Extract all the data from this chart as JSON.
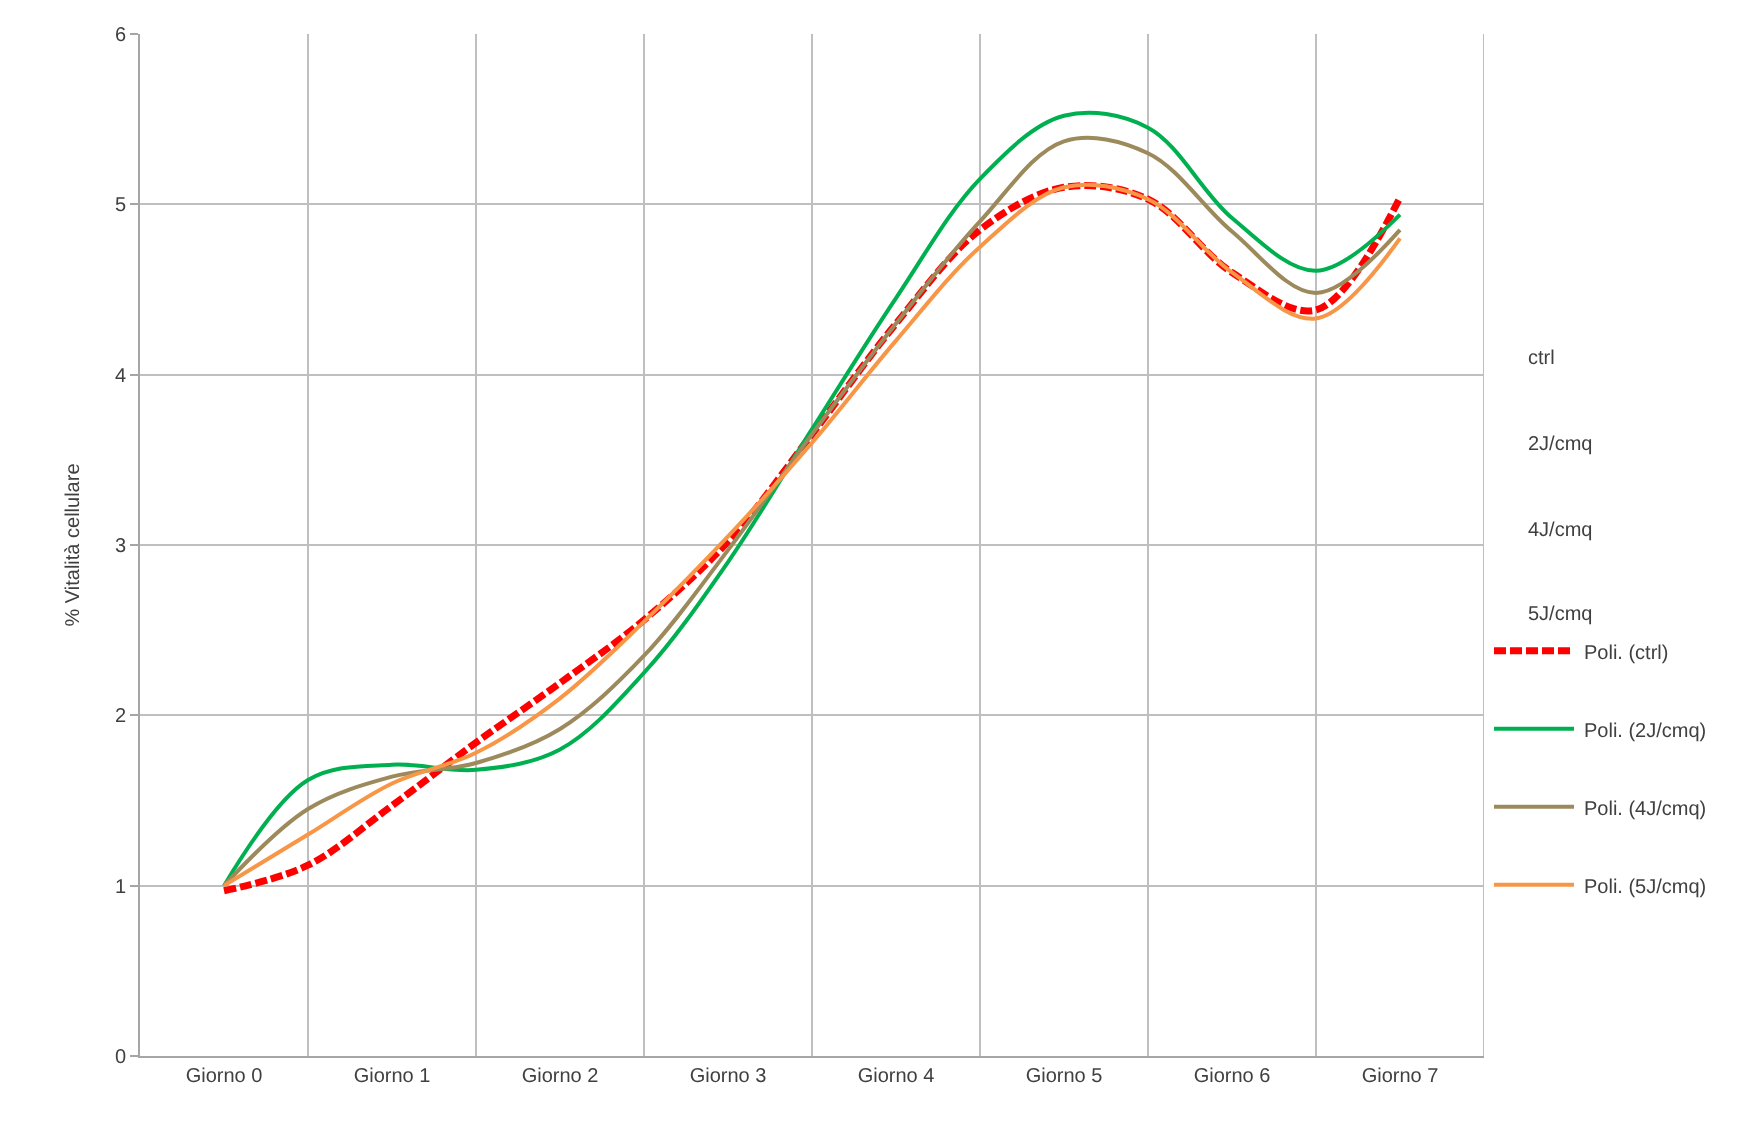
{
  "chart_data": {
    "type": "line",
    "ylabel": "% Vitalità cellulare",
    "annotations": [
      "ctrl",
      "2J/cmq",
      "4J/cmq",
      "5J/cmq"
    ],
    "categories": [
      "Giorno 0",
      null,
      "Giorno 1",
      null,
      "Giorno 2",
      null,
      "Giorno 3",
      null,
      "Giorno 4",
      null,
      "Giorno 5",
      null,
      "Giorno 6",
      null,
      "Giorno 7"
    ],
    "ylim": [
      0,
      6
    ],
    "yticks": [
      0,
      1,
      2,
      3,
      4,
      5,
      6
    ],
    "grid": true,
    "legend": "right",
    "marker": "none",
    "series": [
      {
        "name": "Poli. (ctrl)",
        "color": "#ff0000",
        "line_style": "dashed",
        "values": [
          0.97,
          1.12,
          1.47,
          1.84,
          2.19,
          2.56,
          3.02,
          3.65,
          4.3,
          4.85,
          5.1,
          5.03,
          4.6,
          4.38,
          5.04
        ]
      },
      {
        "name": "Poli. (2J/cmq)",
        "color": "#00b050",
        "line_style": "solid",
        "values": [
          1.0,
          1.62,
          1.71,
          1.68,
          1.8,
          2.25,
          2.9,
          3.68,
          4.45,
          5.15,
          5.52,
          5.45,
          4.92,
          4.61,
          4.94
        ]
      },
      {
        "name": "Poli. (4J/cmq)",
        "color": "#9c8a5c",
        "line_style": "solid",
        "values": [
          1.0,
          1.45,
          1.64,
          1.72,
          1.92,
          2.35,
          2.97,
          3.65,
          4.3,
          4.9,
          5.37,
          5.3,
          4.84,
          4.48,
          4.85
        ]
      },
      {
        "name": "Poli. (5J/cmq)",
        "color": "#f79646",
        "line_style": "solid",
        "values": [
          1.0,
          1.3,
          1.6,
          1.78,
          2.1,
          2.55,
          3.05,
          3.6,
          4.2,
          4.75,
          5.1,
          5.03,
          4.6,
          4.33,
          4.8
        ]
      }
    ]
  }
}
